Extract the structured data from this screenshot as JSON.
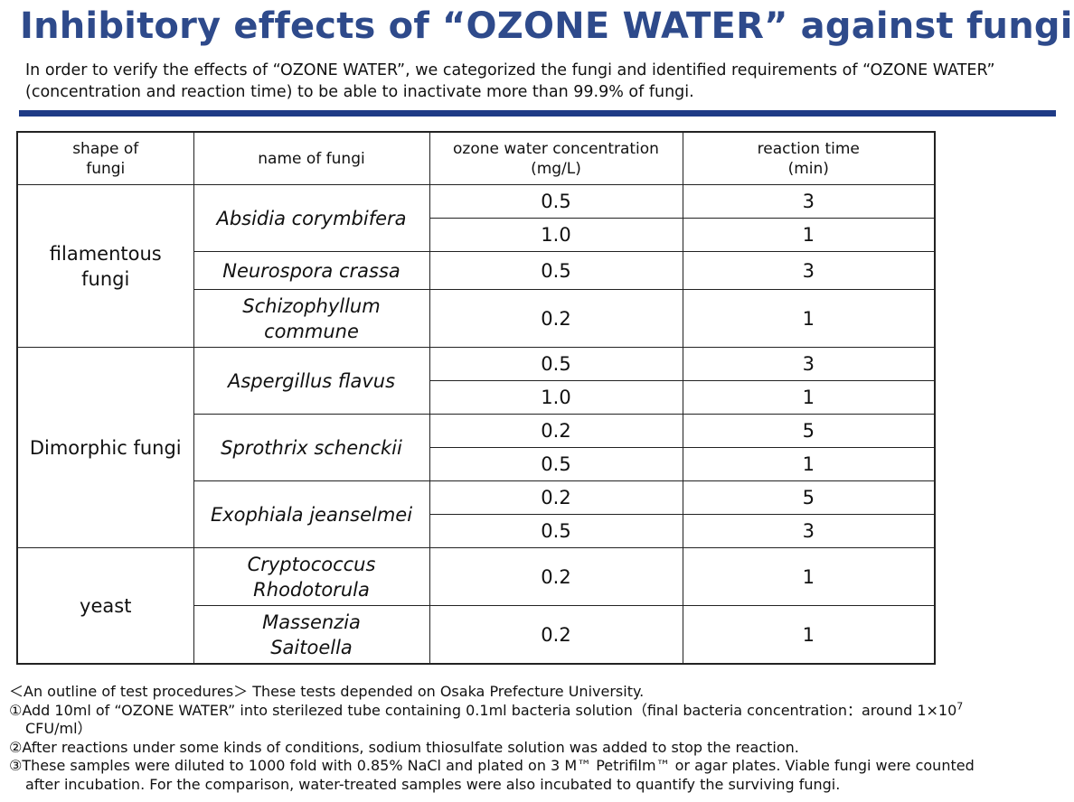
{
  "title": "Inhibitory effects of “OZONE WATER” against fungi",
  "intro": "In order to verify the effects of “OZONE WATER”, we categorized the fungi and identified requirements of “OZONE WATER” (concentration and reaction time) to be able to inactivate more than 99.9% of fungi.",
  "table": {
    "headers": {
      "shape_line1": "shape of",
      "shape_line2": "fungi",
      "name": "name of fungi",
      "conc_line1": "ozone water concentration",
      "conc_line2": "(mg/L)",
      "time_line1": "reaction time",
      "time_line2": "(min)"
    },
    "groups": {
      "filamentous": {
        "shape_line1": "filamentous",
        "shape_line2": "fungi",
        "absidia": "Absidia corymbifera",
        "neurospora": "Neurospora crassa",
        "schizo_line1": "Schizophyllum",
        "schizo_line2": "commune",
        "rows": [
          {
            "conc": "0.5",
            "time": "3"
          },
          {
            "conc": "1.0",
            "time": "1"
          },
          {
            "conc": "0.5",
            "time": "3"
          },
          {
            "conc": "0.2",
            "time": "1"
          }
        ]
      },
      "dimorphic": {
        "shape": "Dimorphic fungi",
        "aspergillus": "Aspergillus flavus",
        "sprothrix": "Sprothrix schenckii",
        "exophiala": "Exophiala jeanselmei",
        "rows": [
          {
            "conc": "0.5",
            "time": "3"
          },
          {
            "conc": "1.0",
            "time": "1"
          },
          {
            "conc": "0.2",
            "time": "5"
          },
          {
            "conc": "0.5",
            "time": "1"
          },
          {
            "conc": "0.2",
            "time": "5"
          },
          {
            "conc": "0.5",
            "time": "3"
          }
        ]
      },
      "yeast": {
        "shape": "yeast",
        "crypto_line1": "Cryptococcus",
        "crypto_line2": "Rhodotorula",
        "massenzia_line1": "Massenzia",
        "massenzia_line2": "Saitoella",
        "rows": [
          {
            "conc": "0.2",
            "time": "1"
          },
          {
            "conc": "0.2",
            "time": "1"
          }
        ]
      }
    }
  },
  "notes": {
    "outline": "＜An outline of test procedures＞ These tests depended on Osaka Prefecture University.",
    "step1_a": "①Add 10ml of “OZONE WATER” into sterilezed tube containing 0.1ml bacteria solution（final bacteria concentration：around 1×10",
    "step1_exp": "7",
    "step1_b": "CFU/ml）",
    "step2": "②After reactions under some kinds of conditions, sodium thiosulfate solution was added to stop the reaction.",
    "step3_a": "③These samples were diluted to 1000 fold with 0.85% NaCl and plated on 3 M™ Petrifilm™ or agar plates. Viable fungi were counted",
    "step3_b": "after incubation. For the comparison, water-treated samples were also incubated to quantify the surviving fungi."
  }
}
